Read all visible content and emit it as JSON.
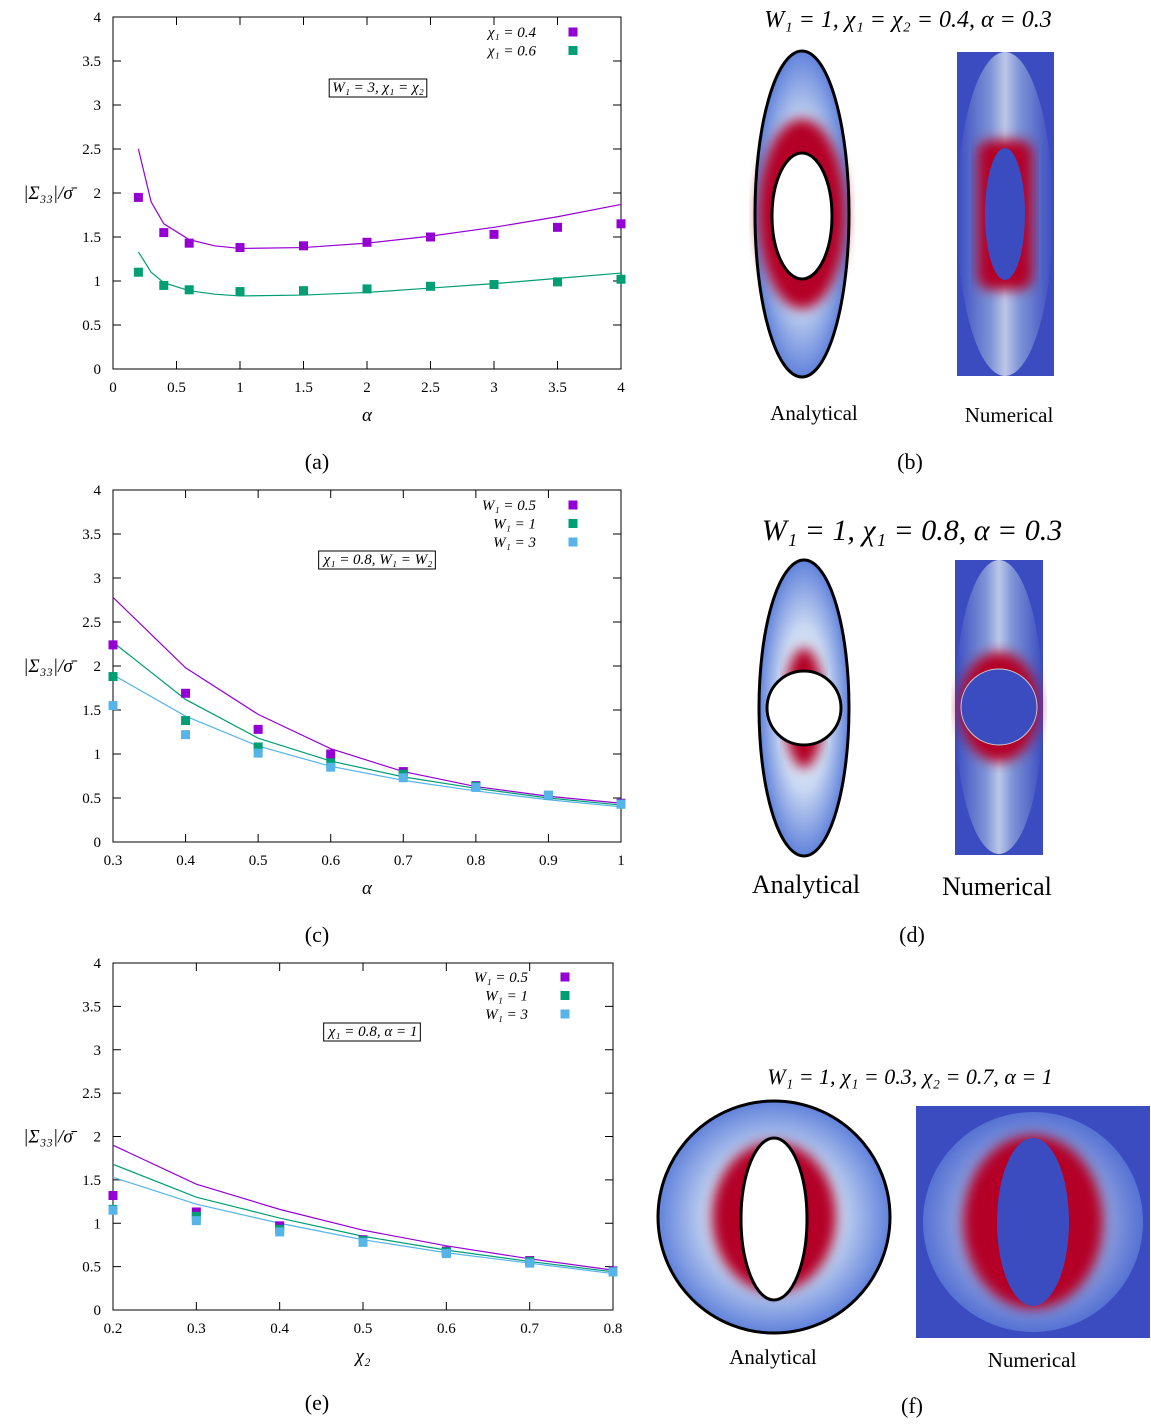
{
  "chart_data": [
    {
      "type": "scatter",
      "caption": "(a)",
      "xlabel": "α",
      "ylabel": "|Σ₃₃|/σ̄",
      "annotation": "W₁ = 3, χ₁ = χ₂",
      "xlim": [
        0,
        4
      ],
      "xticks": [
        0,
        0.5,
        1,
        1.5,
        2,
        2.5,
        3,
        3.5,
        4
      ],
      "ylim": [
        0,
        4
      ],
      "yticks": [
        0,
        0.5,
        1,
        1.5,
        2,
        2.5,
        3,
        3.5,
        4
      ],
      "series": [
        {
          "name": "χ₁ = 0.4",
          "color": "#9400d3",
          "x": [
            0.2,
            0.4,
            0.6,
            1,
            1.5,
            2,
            2.5,
            3,
            3.5,
            4
          ],
          "values": [
            1.95,
            1.55,
            1.43,
            1.38,
            1.4,
            1.44,
            1.5,
            1.53,
            1.61,
            1.65
          ]
        },
        {
          "name": "χ₁ = 0.6",
          "color": "#009e73",
          "x": [
            0.2,
            0.4,
            0.6,
            1,
            1.5,
            2,
            2.5,
            3,
            3.5,
            4
          ],
          "values": [
            1.1,
            0.95,
            0.9,
            0.88,
            0.89,
            0.91,
            0.94,
            0.96,
            0.99,
            1.02
          ]
        }
      ],
      "fits": [
        {
          "color": "#9400d3",
          "x": [
            0.2,
            0.3,
            0.4,
            0.6,
            0.8,
            1,
            1.5,
            2,
            2.5,
            3,
            3.5,
            4
          ],
          "values": [
            2.5,
            1.9,
            1.65,
            1.47,
            1.4,
            1.37,
            1.38,
            1.43,
            1.51,
            1.61,
            1.73,
            1.87
          ]
        },
        {
          "color": "#009e73",
          "x": [
            0.2,
            0.3,
            0.4,
            0.6,
            0.8,
            1,
            1.5,
            2,
            2.5,
            3,
            3.5,
            4
          ],
          "values": [
            1.33,
            1.1,
            0.98,
            0.89,
            0.85,
            0.83,
            0.84,
            0.87,
            0.92,
            0.97,
            1.03,
            1.09
          ]
        }
      ]
    },
    {
      "type": "scatter",
      "caption": "(c)",
      "xlabel": "α",
      "ylabel": "|Σ₃₃|/σ̄",
      "annotation": "χ₁ = 0.8, W₁ = W₂",
      "xlim": [
        0.3,
        1
      ],
      "xticks": [
        0.3,
        0.4,
        0.5,
        0.6,
        0.7,
        0.8,
        0.9,
        1
      ],
      "ylim": [
        0,
        4
      ],
      "yticks": [
        0,
        0.5,
        1,
        1.5,
        2,
        2.5,
        3,
        3.5,
        4
      ],
      "series": [
        {
          "name": "W₁ = 0.5",
          "color": "#9400d3",
          "x": [
            0.3,
            0.4,
            0.5,
            0.6,
            0.7,
            0.8,
            0.9,
            1
          ],
          "values": [
            2.24,
            1.69,
            1.28,
            1.0,
            0.8,
            0.64,
            0.53,
            0.44
          ]
        },
        {
          "name": "W₁ = 1",
          "color": "#009e73",
          "x": [
            0.3,
            0.4,
            0.5,
            0.6,
            0.7,
            0.8,
            0.9,
            1
          ],
          "values": [
            1.88,
            1.38,
            1.08,
            0.9,
            0.77,
            0.63,
            0.53,
            0.43
          ]
        },
        {
          "name": "W₁ = 3",
          "color": "#56b4e9",
          "x": [
            0.3,
            0.4,
            0.5,
            0.6,
            0.7,
            0.8,
            0.9,
            1
          ],
          "values": [
            1.55,
            1.22,
            1.01,
            0.85,
            0.73,
            0.62,
            0.53,
            0.43
          ]
        }
      ],
      "fits": [
        {
          "color": "#9400d3",
          "x": [
            0.3,
            0.4,
            0.5,
            0.6,
            0.7,
            0.8,
            0.9,
            1
          ],
          "values": [
            2.78,
            1.98,
            1.45,
            1.06,
            0.8,
            0.63,
            0.52,
            0.44
          ]
        },
        {
          "color": "#009e73",
          "x": [
            0.3,
            0.4,
            0.5,
            0.6,
            0.7,
            0.8,
            0.9,
            1
          ],
          "values": [
            2.27,
            1.62,
            1.18,
            0.92,
            0.74,
            0.61,
            0.5,
            0.42
          ]
        },
        {
          "color": "#56b4e9",
          "x": [
            0.3,
            0.4,
            0.5,
            0.6,
            0.7,
            0.8,
            0.9,
            1
          ],
          "values": [
            1.9,
            1.43,
            1.09,
            0.86,
            0.7,
            0.58,
            0.48,
            0.4
          ]
        }
      ]
    },
    {
      "type": "scatter",
      "caption": "(e)",
      "xlabel": "χ₂",
      "ylabel": "|Σ₃₃|/σ̄",
      "annotation": "χ₁ = 0.8, α = 1",
      "xlim": [
        0.2,
        0.8
      ],
      "xticks": [
        0.2,
        0.3,
        0.4,
        0.5,
        0.6,
        0.7,
        0.8
      ],
      "ylim": [
        0,
        4
      ],
      "yticks": [
        0,
        0.5,
        1,
        1.5,
        2,
        2.5,
        3,
        3.5,
        4
      ],
      "series": [
        {
          "name": "W₁ = 0.5",
          "color": "#9400d3",
          "x": [
            0.2,
            0.3,
            0.4,
            0.5,
            0.6,
            0.7,
            0.8
          ],
          "values": [
            1.32,
            1.13,
            0.97,
            0.81,
            0.68,
            0.57,
            0.45
          ]
        },
        {
          "name": "W₁ = 1",
          "color": "#009e73",
          "x": [
            0.2,
            0.3,
            0.4,
            0.5,
            0.6,
            0.7,
            0.8
          ],
          "values": [
            1.16,
            1.08,
            0.93,
            0.8,
            0.67,
            0.56,
            0.44
          ]
        },
        {
          "name": "W₁ = 3",
          "color": "#56b4e9",
          "x": [
            0.2,
            0.3,
            0.4,
            0.5,
            0.6,
            0.7,
            0.8
          ],
          "values": [
            1.15,
            1.03,
            0.9,
            0.78,
            0.65,
            0.54,
            0.44
          ]
        }
      ],
      "fits": [
        {
          "color": "#9400d3",
          "x": [
            0.2,
            0.3,
            0.4,
            0.5,
            0.6,
            0.7,
            0.8
          ],
          "values": [
            1.9,
            1.45,
            1.16,
            0.92,
            0.74,
            0.59,
            0.46
          ]
        },
        {
          "color": "#009e73",
          "x": [
            0.2,
            0.3,
            0.4,
            0.5,
            0.6,
            0.7,
            0.8
          ],
          "values": [
            1.68,
            1.3,
            1.06,
            0.85,
            0.69,
            0.56,
            0.44
          ]
        },
        {
          "color": "#56b4e9",
          "x": [
            0.2,
            0.3,
            0.4,
            0.5,
            0.6,
            0.7,
            0.8
          ],
          "values": [
            1.53,
            1.22,
            1.0,
            0.81,
            0.66,
            0.54,
            0.42
          ]
        }
      ]
    }
  ],
  "figures": [
    {
      "title": "W₁ = 1, χ₁ = χ₂ = 0.4, α = 0.3",
      "left_label": "Analytical",
      "right_label": "Numerical",
      "caption": "(b)"
    },
    {
      "title": "W₁ = 1, χ₁ = 0.8, α = 0.3",
      "left_label": "Analytical",
      "right_label": "Numerical",
      "caption": "(d)"
    },
    {
      "title": "W₁ = 1, χ₁ = 0.3, χ₂ = 0.7, α = 1",
      "left_label": "Analytical",
      "right_label": "Numerical",
      "caption": "(f)"
    }
  ]
}
